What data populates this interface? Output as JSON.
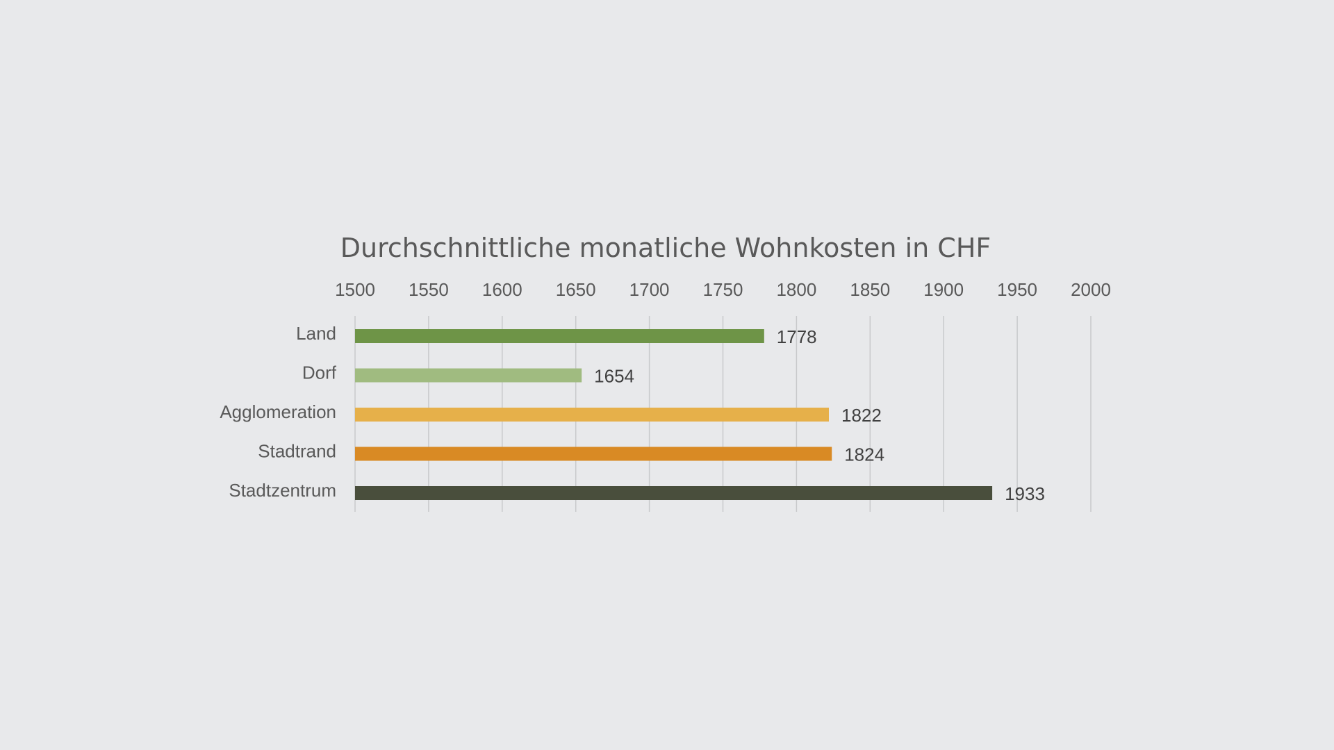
{
  "chart_data": {
    "type": "bar",
    "orientation": "horizontal",
    "title": "Durchschnittliche monatliche Wohnkosten in CHF",
    "xlabel": "",
    "ylabel": "",
    "xlim": [
      1500,
      2000
    ],
    "x_ticks": [
      1500,
      1550,
      1600,
      1650,
      1700,
      1750,
      1800,
      1850,
      1900,
      1950,
      2000
    ],
    "x_axis_position": "top",
    "grid": true,
    "legend": "none",
    "categories": [
      "Land",
      "Dorf",
      "Agglomeration",
      "Stadtrand",
      "Stadtzentrum"
    ],
    "values": [
      1778,
      1654,
      1822,
      1824,
      1933
    ],
    "colors": [
      "#6e9447",
      "#a0bb80",
      "#e6b04a",
      "#d98a24",
      "#494e3c"
    ]
  },
  "background_color": "#e8e9eb"
}
